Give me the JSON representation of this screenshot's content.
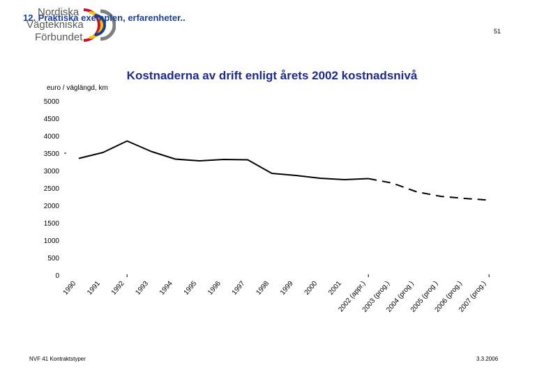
{
  "header": {
    "heading": "12. Praktiska exemplen, erfarenheter..",
    "page_number": "51",
    "logo": {
      "line1": "Nordiska",
      "line2": "Vägtekniska",
      "line3": "Förbundet",
      "colors": [
        "#c8102e",
        "#f2c500",
        "#1a3f9b",
        "#7f7f7f"
      ]
    }
  },
  "footer": {
    "left": "NVF 41 Kontraktstyper",
    "right": "3.3.2006"
  },
  "chart_data": {
    "type": "line",
    "title": "Kostnaderna av drift enligt årets 2002 kostnadsnivå",
    "ylabel": "euro / väglängd, km",
    "xlabel": "",
    "ylim": [
      0,
      5000
    ],
    "yticks": [
      0,
      500,
      1000,
      1500,
      2000,
      2500,
      3000,
      3500,
      4000,
      4500,
      5000
    ],
    "grid": false,
    "categories": [
      "1990",
      "1991",
      "1992",
      "1993",
      "1994",
      "1995",
      "1996",
      "1997",
      "1998",
      "1999",
      "2000",
      "2001",
      "2002 (appr.)",
      "2003 (prog.)",
      "2004 (prog )",
      "2005 (prog )",
      "2006 (prog.)",
      "2007 (prog.)"
    ],
    "series": [
      {
        "style": "solid",
        "color": "#000000",
        "values": [
          3350,
          3520,
          3850,
          3550,
          3330,
          3280,
          3320,
          3310,
          2920,
          2860,
          2780,
          2740,
          2770,
          null,
          null,
          null,
          null,
          null
        ]
      },
      {
        "style": "dashed",
        "color": "#000000",
        "values": [
          null,
          null,
          null,
          null,
          null,
          null,
          null,
          null,
          null,
          null,
          null,
          null,
          2770,
          2640,
          2390,
          2260,
          2200,
          2150
        ]
      }
    ]
  }
}
